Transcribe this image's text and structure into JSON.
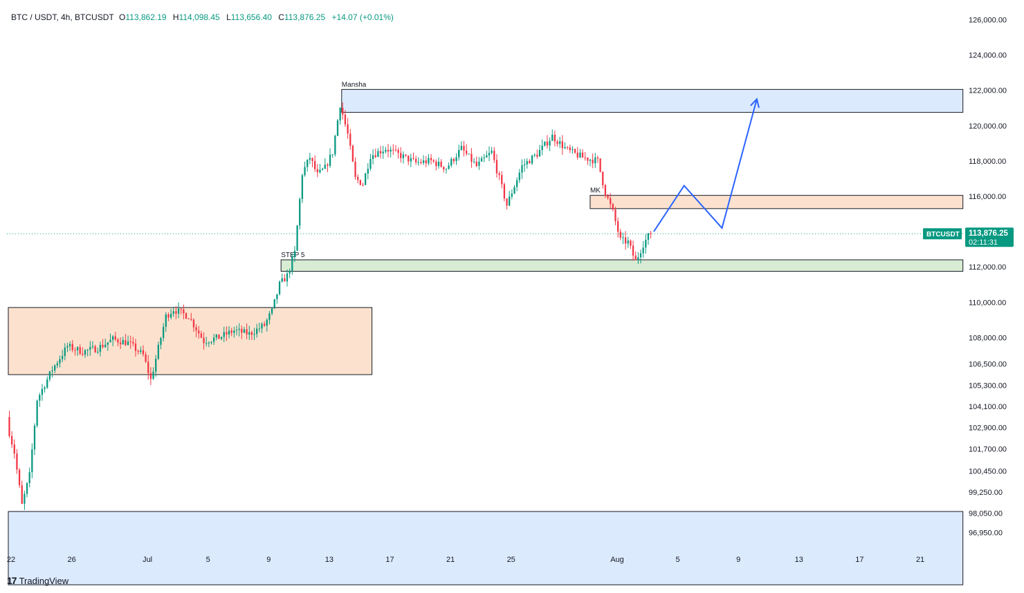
{
  "header": {
    "symbol": "BTC / USDT, 4h, BTCUSDT",
    "o_label": "O",
    "o_value": "113,862.19",
    "h_label": "H",
    "h_value": "114,098.45",
    "l_label": "L",
    "l_value": "113,656.40",
    "c_label": "C",
    "c_value": "113,876.25",
    "change": "+14.07 (+0.01%)"
  },
  "price_tag": {
    "symbol": "BTCUSDT",
    "price": "113,876.25",
    "countdown": "02:11:31",
    "color": "#089981"
  },
  "brand": {
    "logo_mark": "17",
    "name": "TradingView"
  },
  "colors": {
    "up": "#089981",
    "down": "#f23645",
    "path": "#2962ff"
  },
  "chart_data": {
    "type": "candlestick",
    "ylim": [
      96000,
      126800
    ],
    "y_ticks": [
      {
        "value": 126000,
        "label": "126,000.00"
      },
      {
        "value": 124000,
        "label": "124,000.00"
      },
      {
        "value": 122000,
        "label": "122,000.00"
      },
      {
        "value": 120000,
        "label": "120,000.00"
      },
      {
        "value": 118000,
        "label": "118,000.00"
      },
      {
        "value": 116000,
        "label": "116,000.00"
      },
      {
        "value": 112000,
        "label": "112,000.00"
      },
      {
        "value": 110000,
        "label": "110,000.00"
      },
      {
        "value": 108000,
        "label": "108,000.00"
      },
      {
        "value": 106500,
        "label": "106,500.00"
      },
      {
        "value": 105300,
        "label": "105,300.00"
      },
      {
        "value": 104100,
        "label": "104,100.00"
      },
      {
        "value": 102900,
        "label": "102,900.00"
      },
      {
        "value": 101700,
        "label": "101,700.00"
      },
      {
        "value": 100450,
        "label": "100,450.00"
      },
      {
        "value": 99250,
        "label": "99,250.00"
      },
      {
        "value": 98050,
        "label": "98,050.00"
      },
      {
        "value": 96950,
        "label": "96,950.00"
      }
    ],
    "x_ticks": [
      {
        "day": 0,
        "label": "22"
      },
      {
        "day": 4,
        "label": "26"
      },
      {
        "day": 9,
        "label": "Jul"
      },
      {
        "day": 13,
        "label": "5"
      },
      {
        "day": 17,
        "label": "9"
      },
      {
        "day": 21,
        "label": "13"
      },
      {
        "day": 25,
        "label": "17"
      },
      {
        "day": 29,
        "label": "21"
      },
      {
        "day": 33,
        "label": "25"
      },
      {
        "day": 40,
        "label": "Aug"
      },
      {
        "day": 44,
        "label": "5"
      },
      {
        "day": 48,
        "label": "9"
      },
      {
        "day": 52,
        "label": "13"
      },
      {
        "day": 56,
        "label": "17"
      },
      {
        "day": 60,
        "label": "21"
      }
    ],
    "last_price": 113876.25,
    "price_anchors": [
      [
        0.0,
        103200
      ],
      [
        0.5,
        101500
      ],
      [
        1.0,
        98500
      ],
      [
        1.5,
        100200
      ],
      [
        2.0,
        104500
      ],
      [
        3.0,
        106200
      ],
      [
        4.0,
        107500
      ],
      [
        5.0,
        107200
      ],
      [
        6.0,
        107400
      ],
      [
        7.0,
        107900
      ],
      [
        8.0,
        107700
      ],
      [
        9.0,
        107000
      ],
      [
        9.5,
        105600
      ],
      [
        10.0,
        107400
      ],
      [
        10.5,
        109200
      ],
      [
        11.0,
        109600
      ],
      [
        12.0,
        109200
      ],
      [
        13.0,
        107800
      ],
      [
        14.0,
        108000
      ],
      [
        15.0,
        108400
      ],
      [
        16.0,
        108200
      ],
      [
        17.0,
        108700
      ],
      [
        17.5,
        109500
      ],
      [
        18.0,
        111000
      ],
      [
        18.5,
        111500
      ],
      [
        19.0,
        112800
      ],
      [
        19.5,
        117300
      ],
      [
        20.0,
        118200
      ],
      [
        20.5,
        117200
      ],
      [
        21.0,
        117600
      ],
      [
        21.5,
        118500
      ],
      [
        22.0,
        121200
      ],
      [
        22.5,
        119500
      ],
      [
        23.0,
        117000
      ],
      [
        23.5,
        116700
      ],
      [
        24.0,
        118300
      ],
      [
        25.0,
        118700
      ],
      [
        26.0,
        118300
      ],
      [
        27.0,
        117900
      ],
      [
        28.0,
        118000
      ],
      [
        29.0,
        117600
      ],
      [
        30.0,
        118700
      ],
      [
        31.0,
        117700
      ],
      [
        32.0,
        118500
      ],
      [
        33.0,
        115500
      ],
      [
        33.5,
        116600
      ],
      [
        34.0,
        117700
      ],
      [
        35.0,
        118400
      ],
      [
        36.0,
        119400
      ],
      [
        37.0,
        118600
      ],
      [
        38.0,
        118200
      ],
      [
        39.0,
        118000
      ],
      [
        39.5,
        116200
      ],
      [
        40.0,
        115100
      ],
      [
        40.5,
        113500
      ],
      [
        41.0,
        113400
      ],
      [
        41.5,
        112300
      ],
      [
        42.0,
        113300
      ],
      [
        42.45,
        113876
      ]
    ],
    "zones": [
      {
        "x0": 0.0,
        "x1": 24.0,
        "y0": 105900,
        "y1": 109700,
        "fill": "#fce2ce",
        "stroke": true,
        "label": ""
      },
      {
        "x0": 0.0,
        "x1": 63.0,
        "y0": 94000,
        "y1": 98150,
        "fill": "#dceafd",
        "stroke": true,
        "label": ""
      },
      {
        "x0": 22.0,
        "x1": 63.0,
        "y0": 120750,
        "y1": 122050,
        "fill": "#dceafd",
        "stroke": true,
        "label": "Mansha"
      },
      {
        "x0": 38.4,
        "x1": 63.0,
        "y0": 115300,
        "y1": 116050,
        "fill": "#fce2ce",
        "stroke": true,
        "label": "MK"
      },
      {
        "x0": 18.0,
        "x1": 63.0,
        "y0": 111750,
        "y1": 112400,
        "fill": "#d8ecd3",
        "stroke": true,
        "label": "STEP 5"
      }
    ],
    "projected_path": [
      [
        42.6,
        114000
      ],
      [
        44.6,
        116600
      ],
      [
        47.1,
        114200
      ],
      [
        49.4,
        121500
      ]
    ]
  }
}
